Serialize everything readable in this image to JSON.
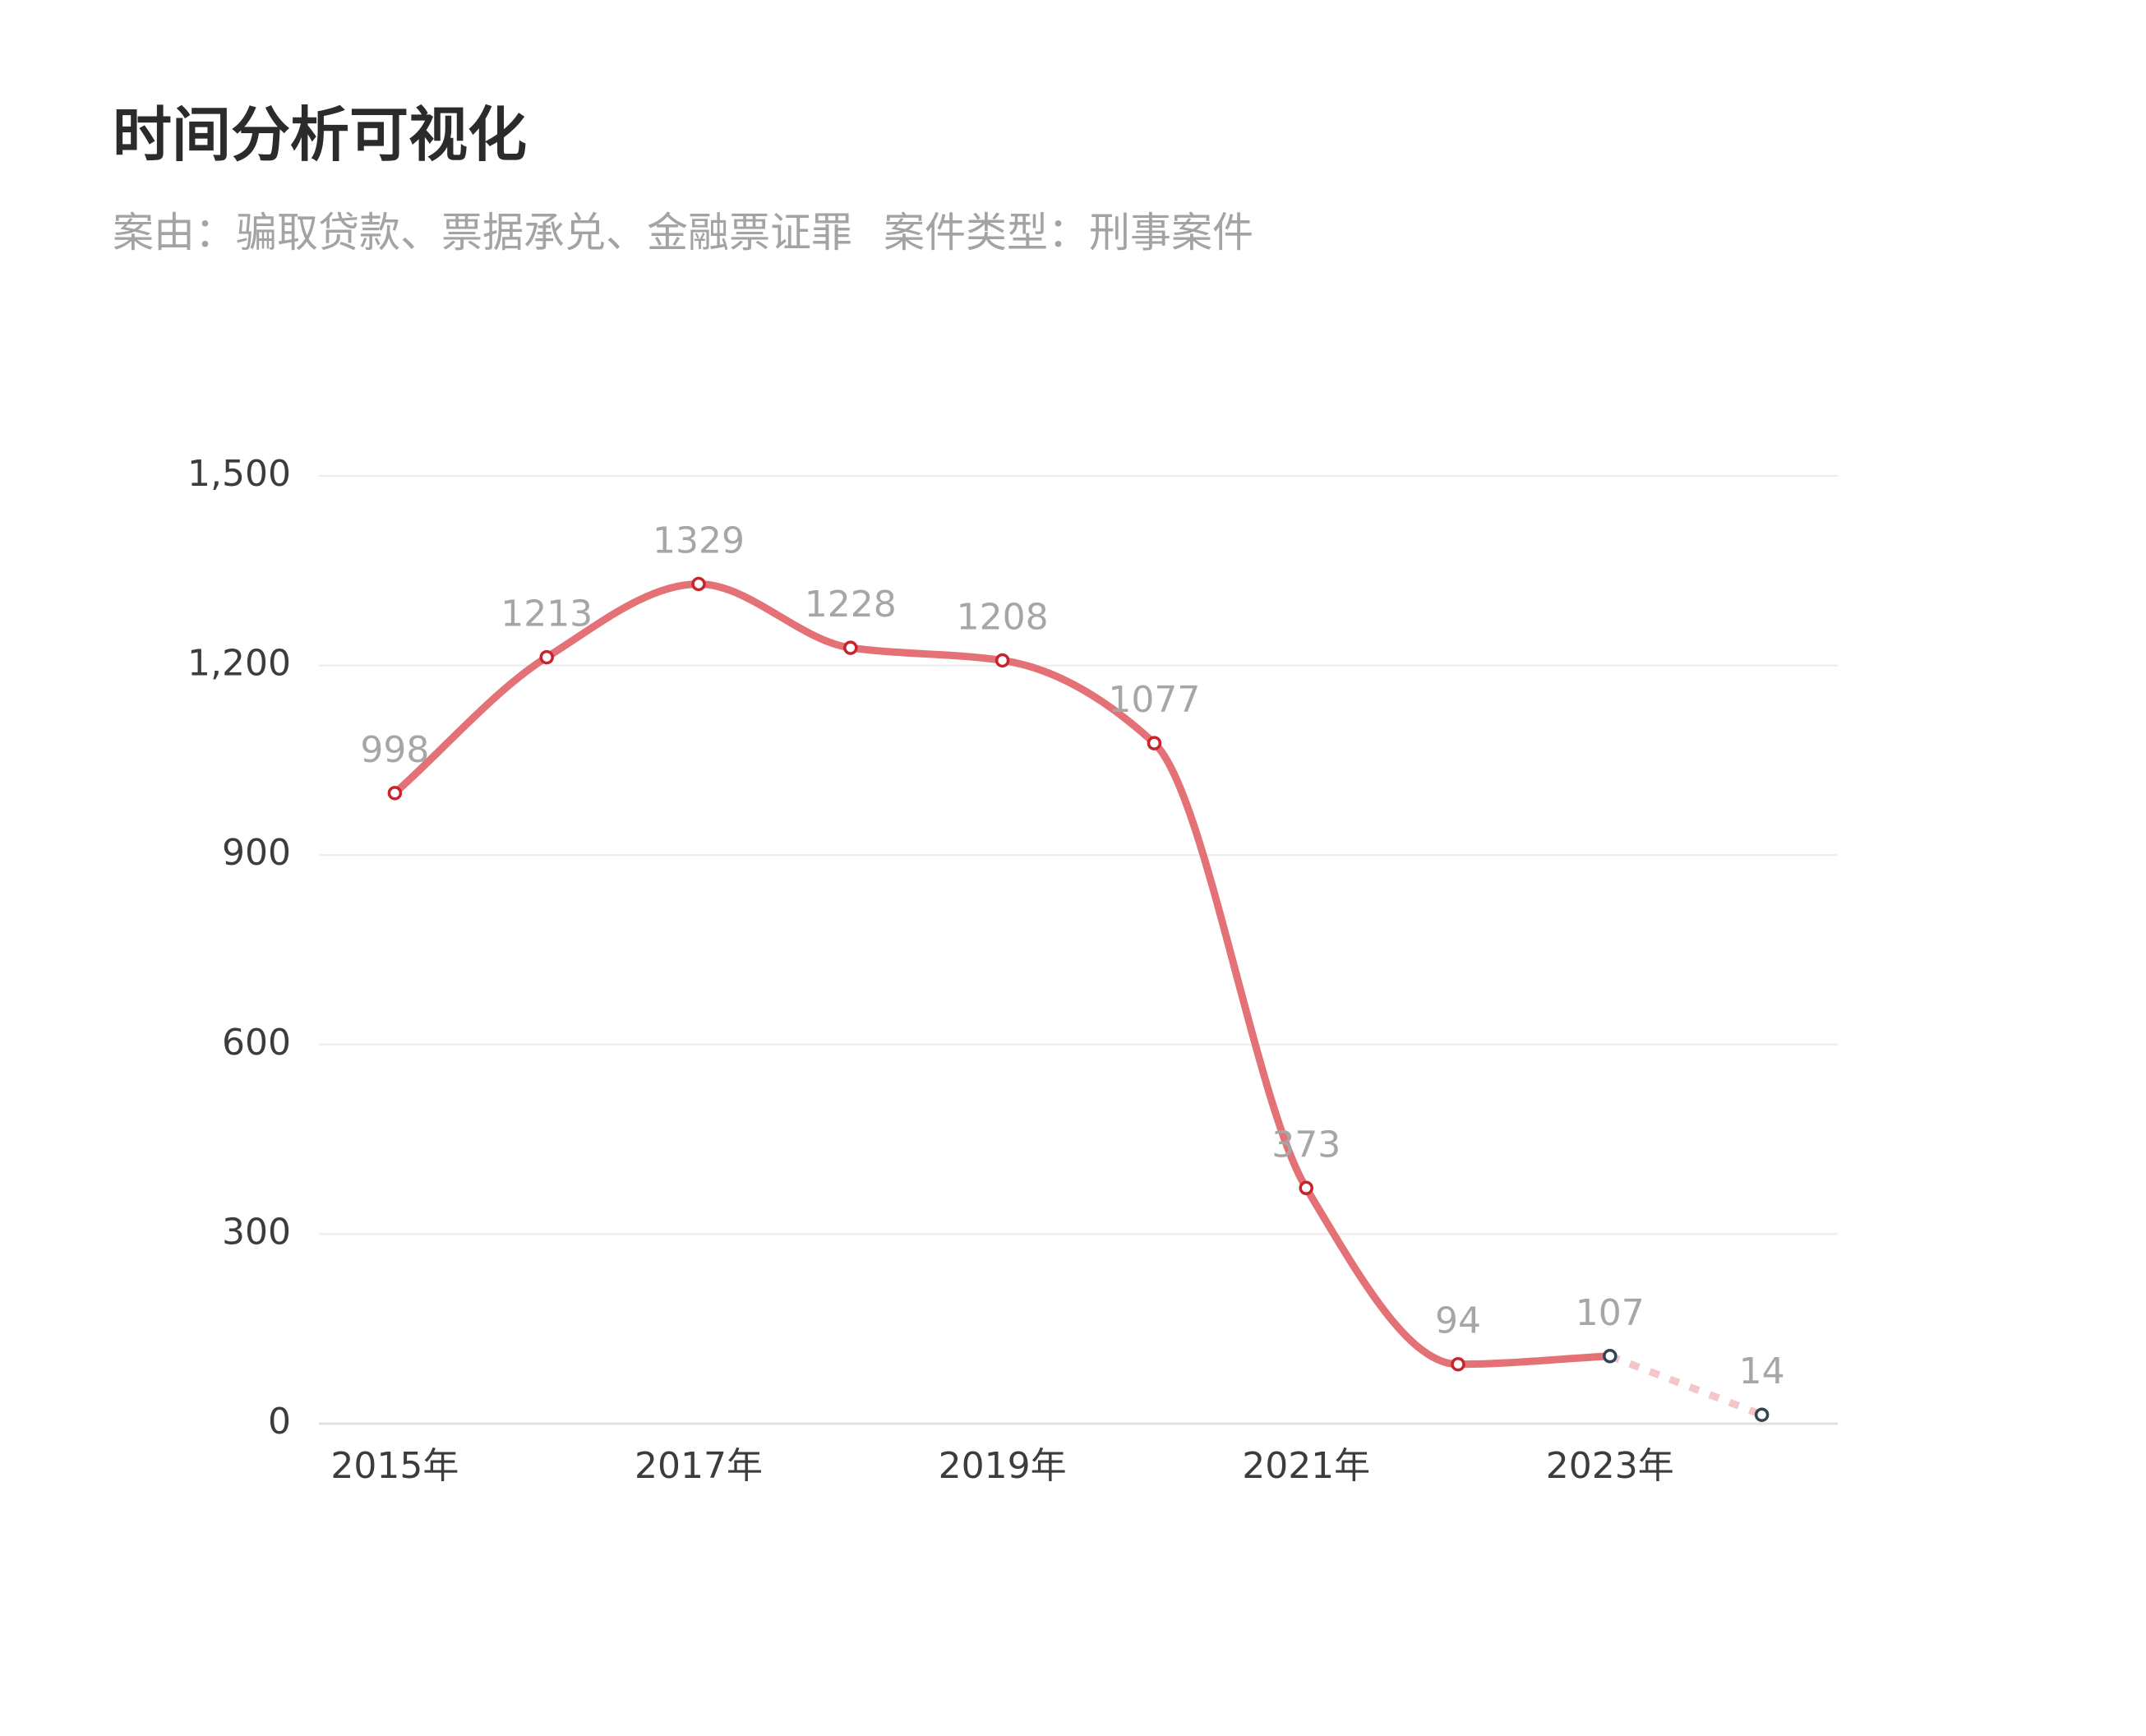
{
  "header": {
    "title": "时间分析可视化",
    "cause": "案由：骗取贷款、票据承兑、金融票证罪",
    "case_type": "案件类型：刑事案件"
  },
  "colors": {
    "line": "#e37176",
    "line_projected": "#f4c6c8",
    "marker_fill": "#ffffff",
    "marker_stroke": "#c8242b",
    "marker_stroke_projected": "#2f4554",
    "grid": "#ececec",
    "axis": "#e0e0e0",
    "tick_label": "#3c3c3c",
    "data_label": "#a6a6a6"
  },
  "chart_data": {
    "type": "line",
    "x": [
      "2015年",
      "2016年",
      "2017年",
      "2018年",
      "2019年",
      "2020年",
      "2021年",
      "2022年",
      "2023年",
      "2024年"
    ],
    "x_tick_labels": [
      "2015年",
      "",
      "2017年",
      "",
      "2019年",
      "",
      "2021年",
      "",
      "2023年",
      ""
    ],
    "values": [
      998,
      1213,
      1329,
      1228,
      1208,
      1077,
      373,
      94,
      107,
      14
    ],
    "data_labels": [
      "998",
      "1213",
      "1329",
      "1228",
      "1208",
      "1077",
      "373",
      "94",
      "107",
      "14"
    ],
    "projected_from_index": 8,
    "y_ticks": [
      0,
      300,
      600,
      900,
      1200,
      1500
    ],
    "y_tick_labels": [
      "0",
      "300",
      "600",
      "900",
      "1,200",
      "1,500"
    ],
    "ylim": [
      0,
      1500
    ],
    "grid": true,
    "smooth": true,
    "title": "",
    "xlabel": "",
    "ylabel": ""
  }
}
